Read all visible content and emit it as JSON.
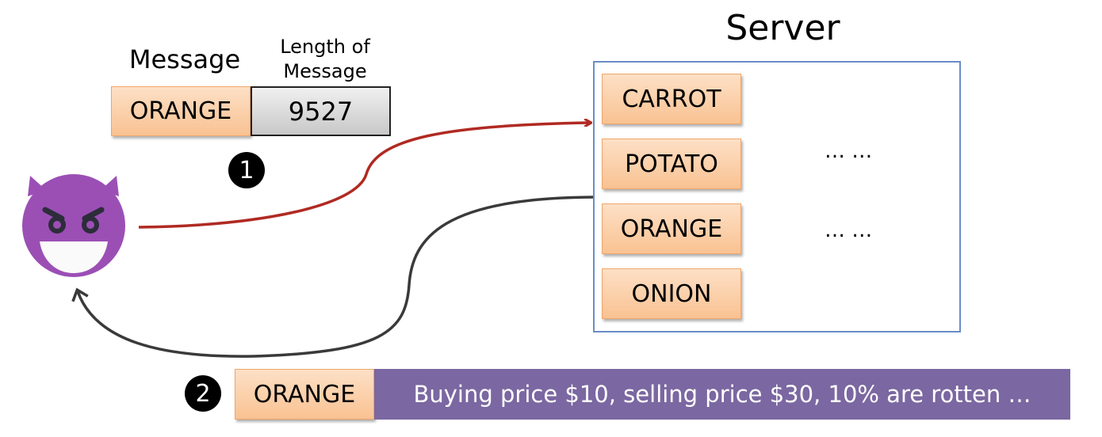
{
  "server": {
    "title": "Server",
    "items": [
      "CARROT",
      "POTATO",
      "ORANGE",
      "ONION"
    ],
    "ellipsis": [
      "… …",
      "… …"
    ]
  },
  "request": {
    "message_label": "Message",
    "length_label_1": "Length of",
    "length_label_2": "Message",
    "message": "ORANGE",
    "length": "9527",
    "step": "1"
  },
  "response": {
    "step": "2",
    "message": "ORANGE",
    "leaked": "Buying price $10, selling price $30, 10% are rotten …"
  },
  "colors": {
    "request_arrow": "#b02a22",
    "response_arrow": "#3a3a3a",
    "leak_bg": "#7b67a1",
    "server_border": "#6a8cc7",
    "devil": "#9b4fb5"
  }
}
